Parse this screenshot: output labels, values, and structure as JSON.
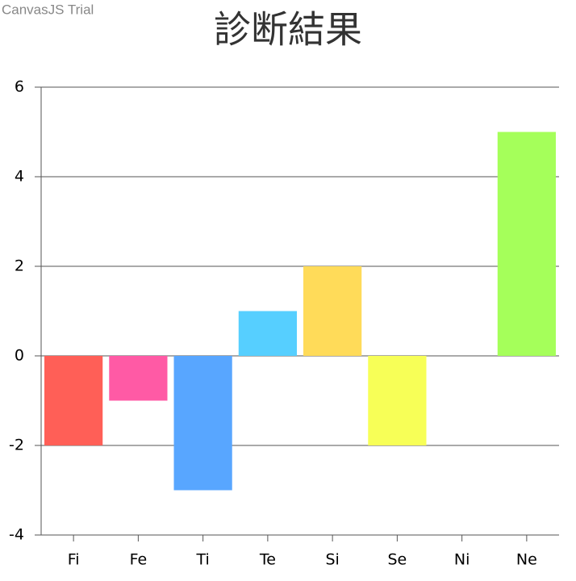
{
  "chart_data": {
    "type": "bar",
    "title": "診断結果",
    "watermark": "CanvasJS Trial",
    "categories": [
      "Fi",
      "Fe",
      "Ti",
      "Te",
      "Si",
      "Se",
      "Ni",
      "Ne"
    ],
    "values": [
      -2,
      -1,
      -3,
      1,
      2,
      -2,
      0,
      5
    ],
    "colors": [
      "#ff5f57",
      "#ff5aa5",
      "#58a6ff",
      "#56cfff",
      "#ffdb59",
      "#f7ff57",
      "#a5ff5a",
      "#a5ff5a"
    ],
    "ylim": [
      -4,
      6
    ],
    "yticks": [
      -4,
      -2,
      0,
      2,
      4,
      6
    ],
    "grid": true
  }
}
